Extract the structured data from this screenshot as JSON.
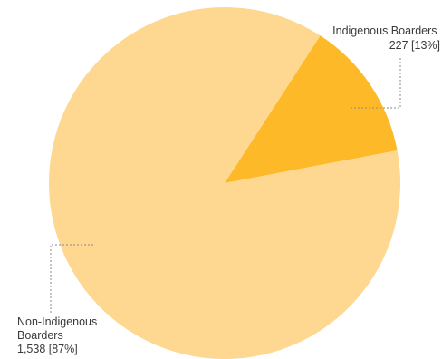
{
  "chart_data": {
    "type": "pie",
    "title": "",
    "slices": [
      {
        "name": "Indigenous Boarders",
        "label_lines": [
          "Indigenous Boarders"
        ],
        "value_text": "227 [13%]",
        "value": 227,
        "percent": 13,
        "color": "#FDB927"
      },
      {
        "name": "Non-Indigenous Boarders",
        "label_lines": [
          "Non-Indigenous",
          "Boarders"
        ],
        "value_text": "1,538 [87%]",
        "value": 1538,
        "percent": 87,
        "color": "#FED790"
      }
    ],
    "start_angle_deg": 33,
    "direction": "clockwise",
    "legend": "none",
    "data_labels": "outside-with-dashed-leaders"
  }
}
